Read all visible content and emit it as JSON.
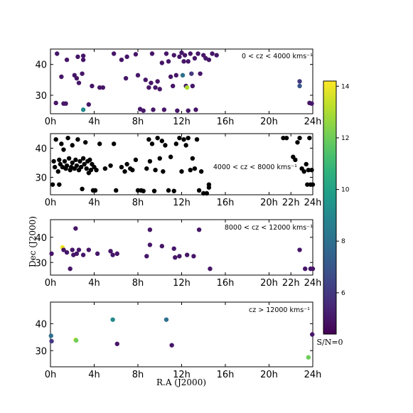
{
  "figure": {
    "xlabel": "R.A (J2000)",
    "ylabel": "Dec (J2000)"
  },
  "colorbar": {
    "min": 4.4,
    "max": 14.2,
    "ticks": [
      6,
      8,
      10,
      12,
      14
    ],
    "tick_labels": [
      "6",
      "8",
      "10",
      "12",
      "14"
    ],
    "bottom_label": "S/N=0"
  },
  "chart_data": [
    {
      "type": "scatter",
      "title": "0 < cz < 4000 kms⁻¹",
      "x_ticks": [
        "0h",
        "4h",
        "8h",
        "12h",
        "16h",
        "20h",
        "24h"
      ],
      "y_ticks": [
        "30",
        "40"
      ],
      "xlim": [
        0,
        24
      ],
      "ylim": [
        24,
        45
      ],
      "color_by": "S/N",
      "points": [
        {
          "ra": 0.5,
          "dec": 27.5,
          "sn": 5
        },
        {
          "ra": 0.6,
          "dec": 43.5,
          "sn": 5
        },
        {
          "ra": 1.0,
          "dec": 36.0,
          "sn": 5
        },
        {
          "ra": 1.2,
          "dec": 27.3,
          "sn": 5
        },
        {
          "ra": 1.4,
          "dec": 27.3,
          "sn": 5
        },
        {
          "ra": 1.5,
          "dec": 41.5,
          "sn": 5
        },
        {
          "ra": 2.2,
          "dec": 36.5,
          "sn": 5
        },
        {
          "ra": 2.4,
          "dec": 35.5,
          "sn": 5
        },
        {
          "ra": 2.5,
          "dec": 42.5,
          "sn": 5
        },
        {
          "ra": 2.6,
          "dec": 34.0,
          "sn": 5
        },
        {
          "ra": 2.9,
          "dec": 37.0,
          "sn": 5
        },
        {
          "ra": 3.0,
          "dec": 42.8,
          "sn": 5
        },
        {
          "ra": 3.0,
          "dec": 41.5,
          "sn": 5
        },
        {
          "ra": 3.0,
          "dec": 25.3,
          "sn": 9
        },
        {
          "ra": 3.5,
          "dec": 27.0,
          "sn": 5
        },
        {
          "ra": 3.8,
          "dec": 33.0,
          "sn": 5
        },
        {
          "ra": 4.5,
          "dec": 32.5,
          "sn": 5
        },
        {
          "ra": 4.8,
          "dec": 32.5,
          "sn": 5
        },
        {
          "ra": 5.8,
          "dec": 43.5,
          "sn": 5
        },
        {
          "ra": 6.5,
          "dec": 41.5,
          "sn": 5
        },
        {
          "ra": 6.9,
          "dec": 35.5,
          "sn": 5
        },
        {
          "ra": 7.0,
          "dec": 42.5,
          "sn": 5
        },
        {
          "ra": 7.8,
          "dec": 43.3,
          "sn": 5
        },
        {
          "ra": 8.0,
          "dec": 36.5,
          "sn": 5
        },
        {
          "ra": 8.2,
          "dec": 25.5,
          "sn": 5
        },
        {
          "ra": 8.5,
          "dec": 25.0,
          "sn": 5
        },
        {
          "ra": 8.7,
          "dec": 35.0,
          "sn": 5
        },
        {
          "ra": 9.0,
          "dec": 32.5,
          "sn": 5
        },
        {
          "ra": 9.2,
          "dec": 34.0,
          "sn": 5
        },
        {
          "ra": 9.3,
          "dec": 43.5,
          "sn": 5
        },
        {
          "ra": 9.4,
          "dec": 25.3,
          "sn": 5
        },
        {
          "ra": 9.6,
          "dec": 32.5,
          "sn": 5
        },
        {
          "ra": 9.8,
          "dec": 34.5,
          "sn": 5
        },
        {
          "ra": 10.0,
          "dec": 32.0,
          "sn": 5
        },
        {
          "ra": 10.2,
          "dec": 40.5,
          "sn": 5
        },
        {
          "ra": 10.4,
          "dec": 25.3,
          "sn": 5
        },
        {
          "ra": 10.6,
          "dec": 43.5,
          "sn": 5
        },
        {
          "ra": 10.8,
          "dec": 41.0,
          "sn": 5
        },
        {
          "ra": 11.0,
          "dec": 36.0,
          "sn": 5
        },
        {
          "ra": 11.2,
          "dec": 33.0,
          "sn": 5
        },
        {
          "ra": 11.3,
          "dec": 43.0,
          "sn": 5
        },
        {
          "ra": 11.5,
          "dec": 36.5,
          "sn": 5
        },
        {
          "ra": 11.6,
          "dec": 25.0,
          "sn": 5
        },
        {
          "ra": 11.8,
          "dec": 42.5,
          "sn": 5
        },
        {
          "ra": 12.0,
          "dec": 43.8,
          "sn": 5
        },
        {
          "ra": 12.1,
          "dec": 36.5,
          "sn": 8
        },
        {
          "ra": 12.2,
          "dec": 41.0,
          "sn": 5
        },
        {
          "ra": 12.3,
          "dec": 43.0,
          "sn": 5
        },
        {
          "ra": 12.4,
          "dec": 33.0,
          "sn": 5
        },
        {
          "ra": 12.5,
          "dec": 32.5,
          "sn": 13
        },
        {
          "ra": 12.6,
          "dec": 25.0,
          "sn": 5
        },
        {
          "ra": 12.6,
          "dec": 41.0,
          "sn": 5
        },
        {
          "ra": 12.8,
          "dec": 43.5,
          "sn": 5
        },
        {
          "ra": 12.9,
          "dec": 37.0,
          "sn": 6
        },
        {
          "ra": 13.0,
          "dec": 33.0,
          "sn": 5
        },
        {
          "ra": 13.2,
          "dec": 42.0,
          "sn": 5
        },
        {
          "ra": 13.3,
          "dec": 25.3,
          "sn": 5
        },
        {
          "ra": 13.5,
          "dec": 43.5,
          "sn": 5
        },
        {
          "ra": 13.7,
          "dec": 37.0,
          "sn": 5
        },
        {
          "ra": 14.0,
          "dec": 43.0,
          "sn": 5
        },
        {
          "ra": 14.2,
          "dec": 42.0,
          "sn": 5
        },
        {
          "ra": 14.5,
          "dec": 41.5,
          "sn": 5
        },
        {
          "ra": 14.8,
          "dec": 43.5,
          "sn": 5
        },
        {
          "ra": 15.2,
          "dec": 43.0,
          "sn": 5
        },
        {
          "ra": 22.8,
          "dec": 34.5,
          "sn": 6
        },
        {
          "ra": 22.8,
          "dec": 33.0,
          "sn": 7
        },
        {
          "ra": 23.7,
          "dec": 27.5,
          "sn": 5
        },
        {
          "ra": 23.9,
          "dec": 27.3,
          "sn": 5
        }
      ]
    },
    {
      "type": "scatter",
      "title": "4000 < cz < 8000 kms⁻¹",
      "x_ticks": [
        "0h",
        "4h",
        "8h",
        "12h",
        "16h",
        "20h",
        "22h",
        "24h"
      ],
      "y_ticks": [
        "30",
        "40"
      ],
      "xlim": [
        0,
        24
      ],
      "ylim": [
        24,
        45
      ],
      "color": "#000000",
      "points": [
        {
          "ra": 0.2,
          "dec": 27.5
        },
        {
          "ra": 0.3,
          "dec": 35.5
        },
        {
          "ra": 0.4,
          "dec": 33.5
        },
        {
          "ra": 0.5,
          "dec": 43.0
        },
        {
          "ra": 0.7,
          "dec": 32.0
        },
        {
          "ra": 0.8,
          "dec": 36.0
        },
        {
          "ra": 0.8,
          "dec": 27.5
        },
        {
          "ra": 0.9,
          "dec": 34.5
        },
        {
          "ra": 1.0,
          "dec": 41.5
        },
        {
          "ra": 1.1,
          "dec": 33.5
        },
        {
          "ra": 1.2,
          "dec": 39.5
        },
        {
          "ra": 1.3,
          "dec": 35.5
        },
        {
          "ra": 1.4,
          "dec": 33.0
        },
        {
          "ra": 1.5,
          "dec": 34.0
        },
        {
          "ra": 1.6,
          "dec": 43.5
        },
        {
          "ra": 1.7,
          "dec": 36.5
        },
        {
          "ra": 1.8,
          "dec": 32.5
        },
        {
          "ra": 1.9,
          "dec": 33.5
        },
        {
          "ra": 2.0,
          "dec": 35.0
        },
        {
          "ra": 2.0,
          "dec": 41.0
        },
        {
          "ra": 2.2,
          "dec": 33.0
        },
        {
          "ra": 2.3,
          "dec": 36.0
        },
        {
          "ra": 2.4,
          "dec": 34.0
        },
        {
          "ra": 2.5,
          "dec": 43.0
        },
        {
          "ra": 2.6,
          "dec": 32.5
        },
        {
          "ra": 2.7,
          "dec": 35.5
        },
        {
          "ra": 2.8,
          "dec": 33.5
        },
        {
          "ra": 2.9,
          "dec": 26.0
        },
        {
          "ra": 3.0,
          "dec": 36.5
        },
        {
          "ra": 3.1,
          "dec": 34.5
        },
        {
          "ra": 3.2,
          "dec": 42.0
        },
        {
          "ra": 3.3,
          "dec": 33.0
        },
        {
          "ra": 3.4,
          "dec": 35.5
        },
        {
          "ra": 3.5,
          "dec": 31.5
        },
        {
          "ra": 3.6,
          "dec": 36.0
        },
        {
          "ra": 3.7,
          "dec": 32.5
        },
        {
          "ra": 3.8,
          "dec": 34.5
        },
        {
          "ra": 3.9,
          "dec": 25.5
        },
        {
          "ra": 4.0,
          "dec": 33.5
        },
        {
          "ra": 4.1,
          "dec": 25.5
        },
        {
          "ra": 4.2,
          "dec": 32.5
        },
        {
          "ra": 4.5,
          "dec": 41.5
        },
        {
          "ra": 5.0,
          "dec": 33.0
        },
        {
          "ra": 5.5,
          "dec": 34.0
        },
        {
          "ra": 5.8,
          "dec": 41.5
        },
        {
          "ra": 6.0,
          "dec": 25.5
        },
        {
          "ra": 6.5,
          "dec": 33.5
        },
        {
          "ra": 6.8,
          "dec": 32.0
        },
        {
          "ra": 7.0,
          "dec": 34.5
        },
        {
          "ra": 7.3,
          "dec": 33.0
        },
        {
          "ra": 7.5,
          "dec": 32.5
        },
        {
          "ra": 7.8,
          "dec": 36.0
        },
        {
          "ra": 8.0,
          "dec": 25.5
        },
        {
          "ra": 8.3,
          "dec": 25.5
        },
        {
          "ra": 8.5,
          "dec": 25.3
        },
        {
          "ra": 8.8,
          "dec": 33.0
        },
        {
          "ra": 9.0,
          "dec": 43.0
        },
        {
          "ra": 9.1,
          "dec": 35.5
        },
        {
          "ra": 9.3,
          "dec": 41.5
        },
        {
          "ra": 9.5,
          "dec": 25.3
        },
        {
          "ra": 9.6,
          "dec": 32.5
        },
        {
          "ra": 9.8,
          "dec": 43.5
        },
        {
          "ra": 10.0,
          "dec": 36.5
        },
        {
          "ra": 10.2,
          "dec": 42.5
        },
        {
          "ra": 10.3,
          "dec": 32.0
        },
        {
          "ra": 10.5,
          "dec": 41.0
        },
        {
          "ra": 10.8,
          "dec": 25.5
        },
        {
          "ra": 11.0,
          "dec": 37.0
        },
        {
          "ra": 11.3,
          "dec": 25.3
        },
        {
          "ra": 11.5,
          "dec": 41.5
        },
        {
          "ra": 11.8,
          "dec": 43.5
        },
        {
          "ra": 12.0,
          "dec": 32.0
        },
        {
          "ra": 12.2,
          "dec": 43.0
        },
        {
          "ra": 12.4,
          "dec": 41.0
        },
        {
          "ra": 12.6,
          "dec": 43.5
        },
        {
          "ra": 12.8,
          "dec": 32.5
        },
        {
          "ra": 13.0,
          "dec": 36.5
        },
        {
          "ra": 13.2,
          "dec": 33.0
        },
        {
          "ra": 13.4,
          "dec": 43.0
        },
        {
          "ra": 13.6,
          "dec": 25.5
        },
        {
          "ra": 13.8,
          "dec": 32.0
        },
        {
          "ra": 14.0,
          "dec": 24.5
        },
        {
          "ra": 14.3,
          "dec": 24.5
        },
        {
          "ra": 14.5,
          "dec": 27.5
        },
        {
          "ra": 14.5,
          "dec": 26.5
        },
        {
          "ra": 21.3,
          "dec": 43.5
        },
        {
          "ra": 21.6,
          "dec": 43.5
        },
        {
          "ra": 22.2,
          "dec": 37.0
        },
        {
          "ra": 22.4,
          "dec": 36.0
        },
        {
          "ra": 22.6,
          "dec": 42.0
        },
        {
          "ra": 22.8,
          "dec": 43.5
        },
        {
          "ra": 23.0,
          "dec": 33.0
        },
        {
          "ra": 23.2,
          "dec": 32.0
        },
        {
          "ra": 23.4,
          "dec": 34.5
        },
        {
          "ra": 23.5,
          "dec": 27.5
        },
        {
          "ra": 23.6,
          "dec": 32.5
        },
        {
          "ra": 23.7,
          "dec": 43.5
        },
        {
          "ra": 23.8,
          "dec": 27.5
        },
        {
          "ra": 23.9,
          "dec": 32.5
        },
        {
          "ra": 24.0,
          "dec": 27.5
        }
      ]
    },
    {
      "type": "scatter",
      "title": "8000 < cz < 12000 kms⁻¹",
      "x_ticks": [
        "0h",
        "4h",
        "8h",
        "12h",
        "16h",
        "20h",
        "22h",
        "24h"
      ],
      "y_ticks": [
        "30",
        "40"
      ],
      "xlim": [
        0,
        24
      ],
      "ylim": [
        25,
        47
      ],
      "color_by": "S/N",
      "points": [
        {
          "ra": 0.1,
          "dec": 33.5,
          "sn": 5
        },
        {
          "ra": 1.1,
          "dec": 36.0,
          "sn": 14
        },
        {
          "ra": 1.2,
          "dec": 35.0,
          "sn": 5
        },
        {
          "ra": 1.5,
          "dec": 34.0,
          "sn": 5
        },
        {
          "ra": 1.8,
          "dec": 27.5,
          "sn": 5
        },
        {
          "ra": 2.0,
          "dec": 35.0,
          "sn": 5
        },
        {
          "ra": 2.1,
          "dec": 33.0,
          "sn": 5
        },
        {
          "ra": 2.3,
          "dec": 43.5,
          "sn": 5
        },
        {
          "ra": 2.4,
          "dec": 33.5,
          "sn": 5
        },
        {
          "ra": 2.6,
          "dec": 35.0,
          "sn": 5
        },
        {
          "ra": 3.0,
          "dec": 33.0,
          "sn": 5
        },
        {
          "ra": 3.5,
          "dec": 35.0,
          "sn": 5
        },
        {
          "ra": 4.3,
          "dec": 33.5,
          "sn": 5
        },
        {
          "ra": 5.5,
          "dec": 34.5,
          "sn": 5
        },
        {
          "ra": 5.7,
          "dec": 33.0,
          "sn": 5
        },
        {
          "ra": 6.1,
          "dec": 33.5,
          "sn": 5
        },
        {
          "ra": 8.8,
          "dec": 32.5,
          "sn": 5
        },
        {
          "ra": 9.1,
          "dec": 37.0,
          "sn": 5
        },
        {
          "ra": 9.1,
          "dec": 43.0,
          "sn": 5
        },
        {
          "ra": 10.2,
          "dec": 36.5,
          "sn": 5
        },
        {
          "ra": 11.3,
          "dec": 35.5,
          "sn": 5
        },
        {
          "ra": 11.4,
          "dec": 32.0,
          "sn": 5
        },
        {
          "ra": 11.8,
          "dec": 32.5,
          "sn": 5
        },
        {
          "ra": 12.5,
          "dec": 33.0,
          "sn": 5
        },
        {
          "ra": 13.1,
          "dec": 32.5,
          "sn": 5
        },
        {
          "ra": 13.6,
          "dec": 43.0,
          "sn": 5
        },
        {
          "ra": 14.6,
          "dec": 27.5,
          "sn": 5
        },
        {
          "ra": 22.8,
          "dec": 35.0,
          "sn": 5
        },
        {
          "ra": 23.3,
          "dec": 27.5,
          "sn": 5
        },
        {
          "ra": 23.8,
          "dec": 27.5,
          "sn": 5
        },
        {
          "ra": 24.0,
          "dec": 27.5,
          "sn": 5
        }
      ]
    },
    {
      "type": "scatter",
      "title": "cz > 12000 kms⁻¹",
      "x_ticks": [
        "0h",
        "4h",
        "8h",
        "12h",
        "16h",
        "20h",
        "24h"
      ],
      "y_ticks": [
        "30",
        "40"
      ],
      "xlim": [
        0,
        24
      ],
      "ylim": [
        24,
        48
      ],
      "color_by": "S/N",
      "points": [
        {
          "ra": 0.05,
          "dec": 35.5,
          "sn": 8
        },
        {
          "ra": 0.1,
          "dec": 33.5,
          "sn": 6
        },
        {
          "ra": 2.3,
          "dec": 34.0,
          "sn": 14
        },
        {
          "ra": 2.35,
          "dec": 33.8,
          "sn": 12
        },
        {
          "ra": 5.7,
          "dec": 41.5,
          "sn": 9
        },
        {
          "ra": 6.1,
          "dec": 32.5,
          "sn": 5
        },
        {
          "ra": 10.6,
          "dec": 41.5,
          "sn": 8
        },
        {
          "ra": 11.1,
          "dec": 32.0,
          "sn": 5
        },
        {
          "ra": 23.6,
          "dec": 27.5,
          "sn": 12
        },
        {
          "ra": 23.95,
          "dec": 36.0,
          "sn": 5
        }
      ]
    }
  ]
}
